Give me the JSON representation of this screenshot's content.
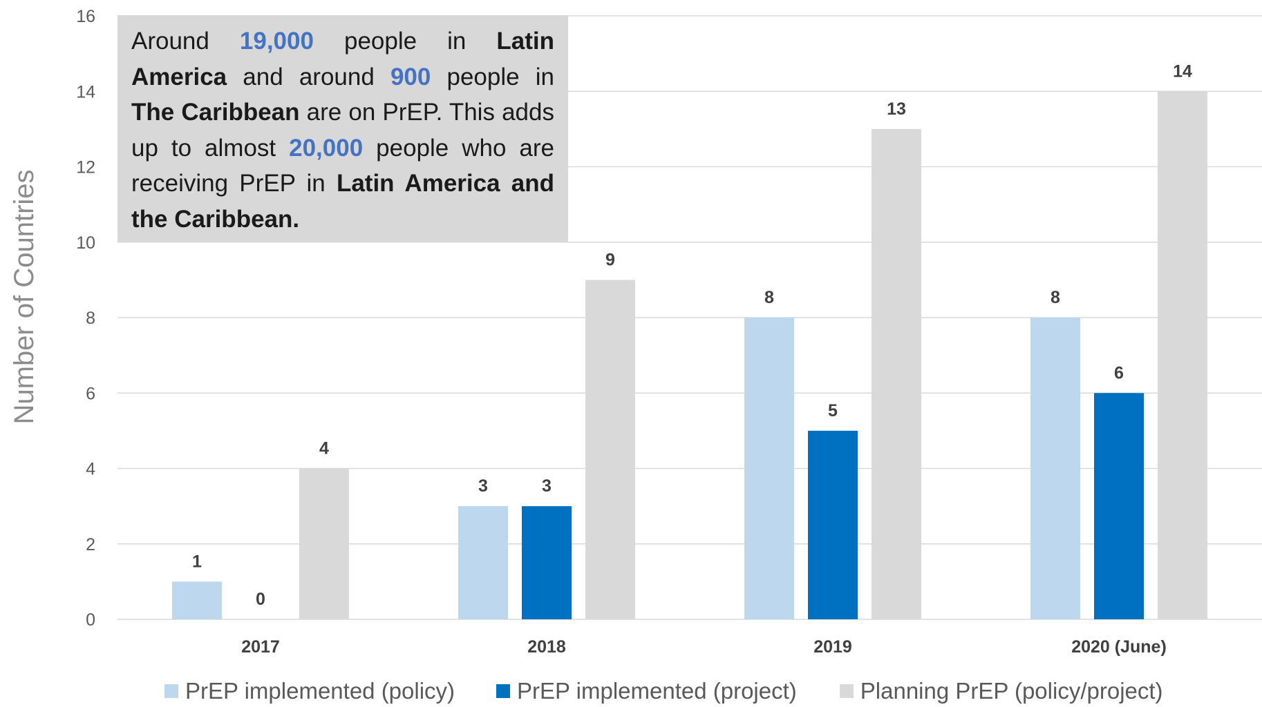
{
  "chart_data": {
    "type": "bar",
    "categories": [
      "2017",
      "2018",
      "2019",
      "2020 (June)"
    ],
    "series": [
      {
        "name": "PrEP implemented (policy)",
        "values": [
          1,
          3,
          8,
          8
        ],
        "color": "#bdd7ee"
      },
      {
        "name": "PrEP implemented (project)",
        "values": [
          0,
          3,
          5,
          6
        ],
        "color": "#0070c0"
      },
      {
        "name": "Planning PrEP (policy/project)",
        "values": [
          4,
          9,
          13,
          14
        ],
        "color": "#d9d9d9"
      }
    ],
    "ylabel": "Number of Countries",
    "ylim": [
      0,
      16
    ],
    "yticks": [
      "0",
      "2",
      "4",
      "6",
      "8",
      "10",
      "12",
      "14",
      "16"
    ],
    "grid": true,
    "legend_position": "bottom"
  },
  "annotation": {
    "t1": "Around ",
    "n1": "19,000",
    "t2": " people in ",
    "b1": "Latin America",
    "t3": " and around ",
    "n2": "900",
    "t4": " people in ",
    "b2": "The Caribbean",
    "t5": " are on PrEP. This adds up to almost ",
    "n3": "20,000",
    "t6": " people who are receiving PrEP in ",
    "b3": "Latin America and the Caribbean."
  },
  "colors": {
    "gridline": "#d9d9d9",
    "annotation_bg": "#d8d8d8",
    "annotation_highlight": "#4472c4"
  }
}
